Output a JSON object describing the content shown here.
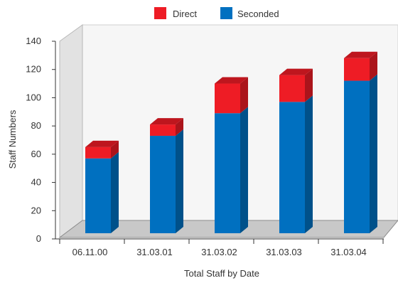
{
  "chart_data": {
    "type": "bar",
    "stacked": true,
    "three_d": true,
    "categories": [
      "06.11.00",
      "31.03.01",
      "31.03.02",
      "31.03.03",
      "31.03.04"
    ],
    "series": [
      {
        "name": "Seconded",
        "values": [
          53,
          69,
          85,
          93,
          108
        ],
        "color": "#0070c0"
      },
      {
        "name": "Direct",
        "values": [
          8,
          8,
          21,
          19,
          16
        ],
        "color": "#ee1c25"
      }
    ],
    "title": "",
    "xlabel": "Total Staff by Date",
    "ylabel": "Staff Numbers",
    "ylim": [
      0,
      140
    ],
    "yticks": [
      0,
      20,
      40,
      60,
      80,
      100,
      120,
      140
    ],
    "grid": false,
    "legend_position": "top-center",
    "legend_order": [
      "Direct",
      "Seconded"
    ]
  }
}
